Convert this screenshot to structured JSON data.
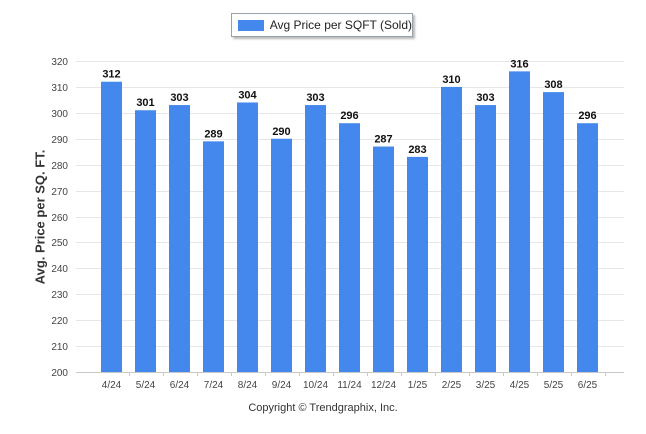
{
  "chart_data": {
    "type": "bar",
    "categories": [
      "4/24",
      "5/24",
      "6/24",
      "7/24",
      "8/24",
      "9/24",
      "10/24",
      "11/24",
      "12/24",
      "1/25",
      "2/25",
      "3/25",
      "4/25",
      "5/25",
      "6/25"
    ],
    "series": [
      {
        "name": "Avg Price per SQFT (Sold)",
        "values": [
          312,
          301,
          303,
          289,
          304,
          290,
          303,
          296,
          287,
          283,
          310,
          303,
          316,
          308,
          296
        ]
      }
    ],
    "ylabel": "Avg. Price per SQ. FT.",
    "ylim": [
      200,
      320
    ],
    "yticks": [
      200,
      210,
      220,
      230,
      240,
      250,
      260,
      270,
      280,
      290,
      300,
      310,
      320
    ],
    "grid": true,
    "legend_position": "top-center",
    "bar_color": "#4488ee",
    "data_labels": true
  },
  "legend": {
    "label": "Avg Price per SQFT (Sold)",
    "color": "#4488ee"
  },
  "credit": "Copyright © Trendgraphix, Inc."
}
